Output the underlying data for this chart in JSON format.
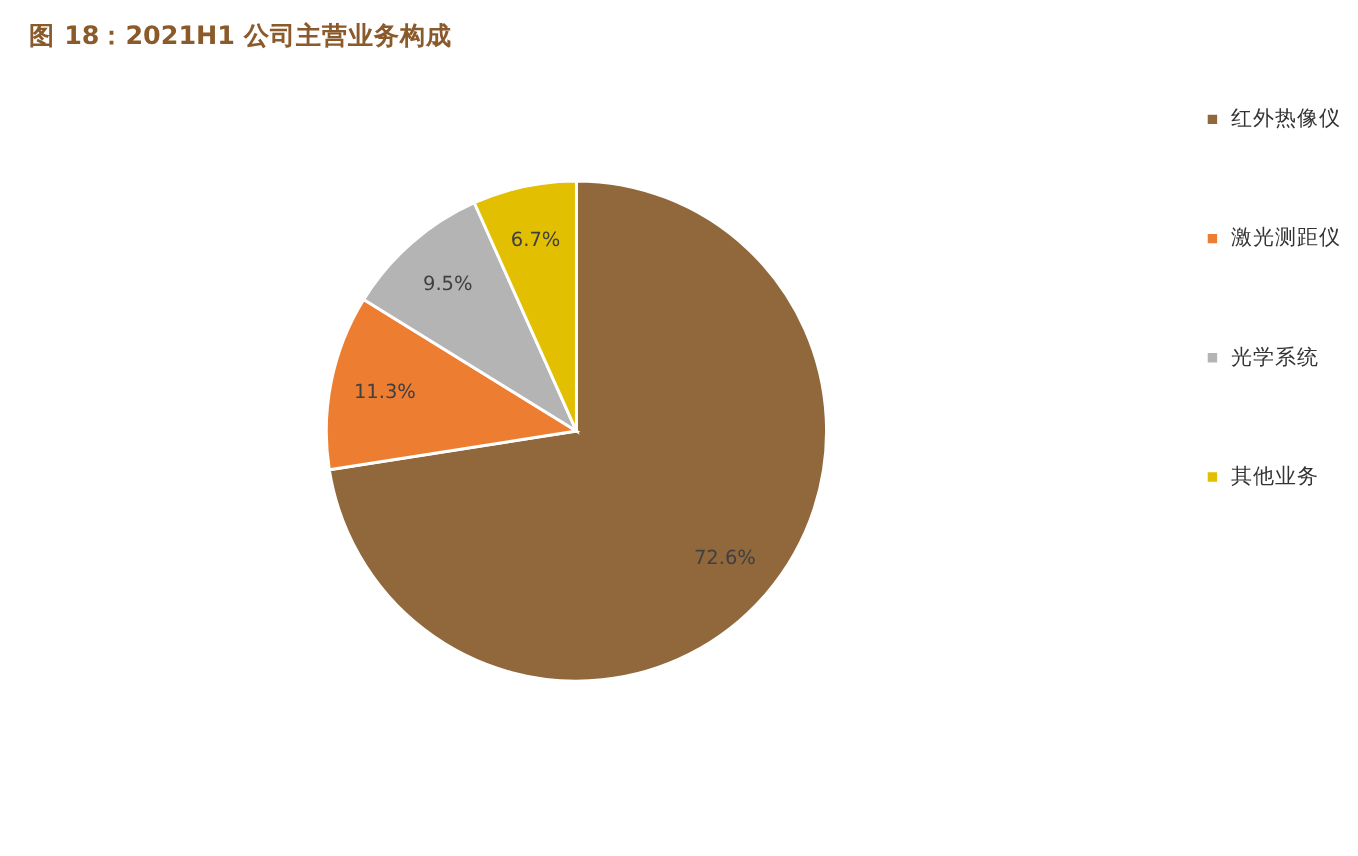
{
  "chart_data": {
    "type": "pie",
    "title": "图 18：2021H1 公司主营业务构成",
    "categories": [
      "红外热像仪",
      "激光测距仪",
      "光学系统",
      "其他业务"
    ],
    "values": [
      72.6,
      11.3,
      9.5,
      6.7
    ],
    "value_labels": [
      "72.6%",
      "11.3%",
      "9.5%",
      "6.7%"
    ],
    "colors": [
      "#91683c",
      "#ed7d31",
      "#b4b4b4",
      "#e2bf00"
    ],
    "legend": "right"
  }
}
